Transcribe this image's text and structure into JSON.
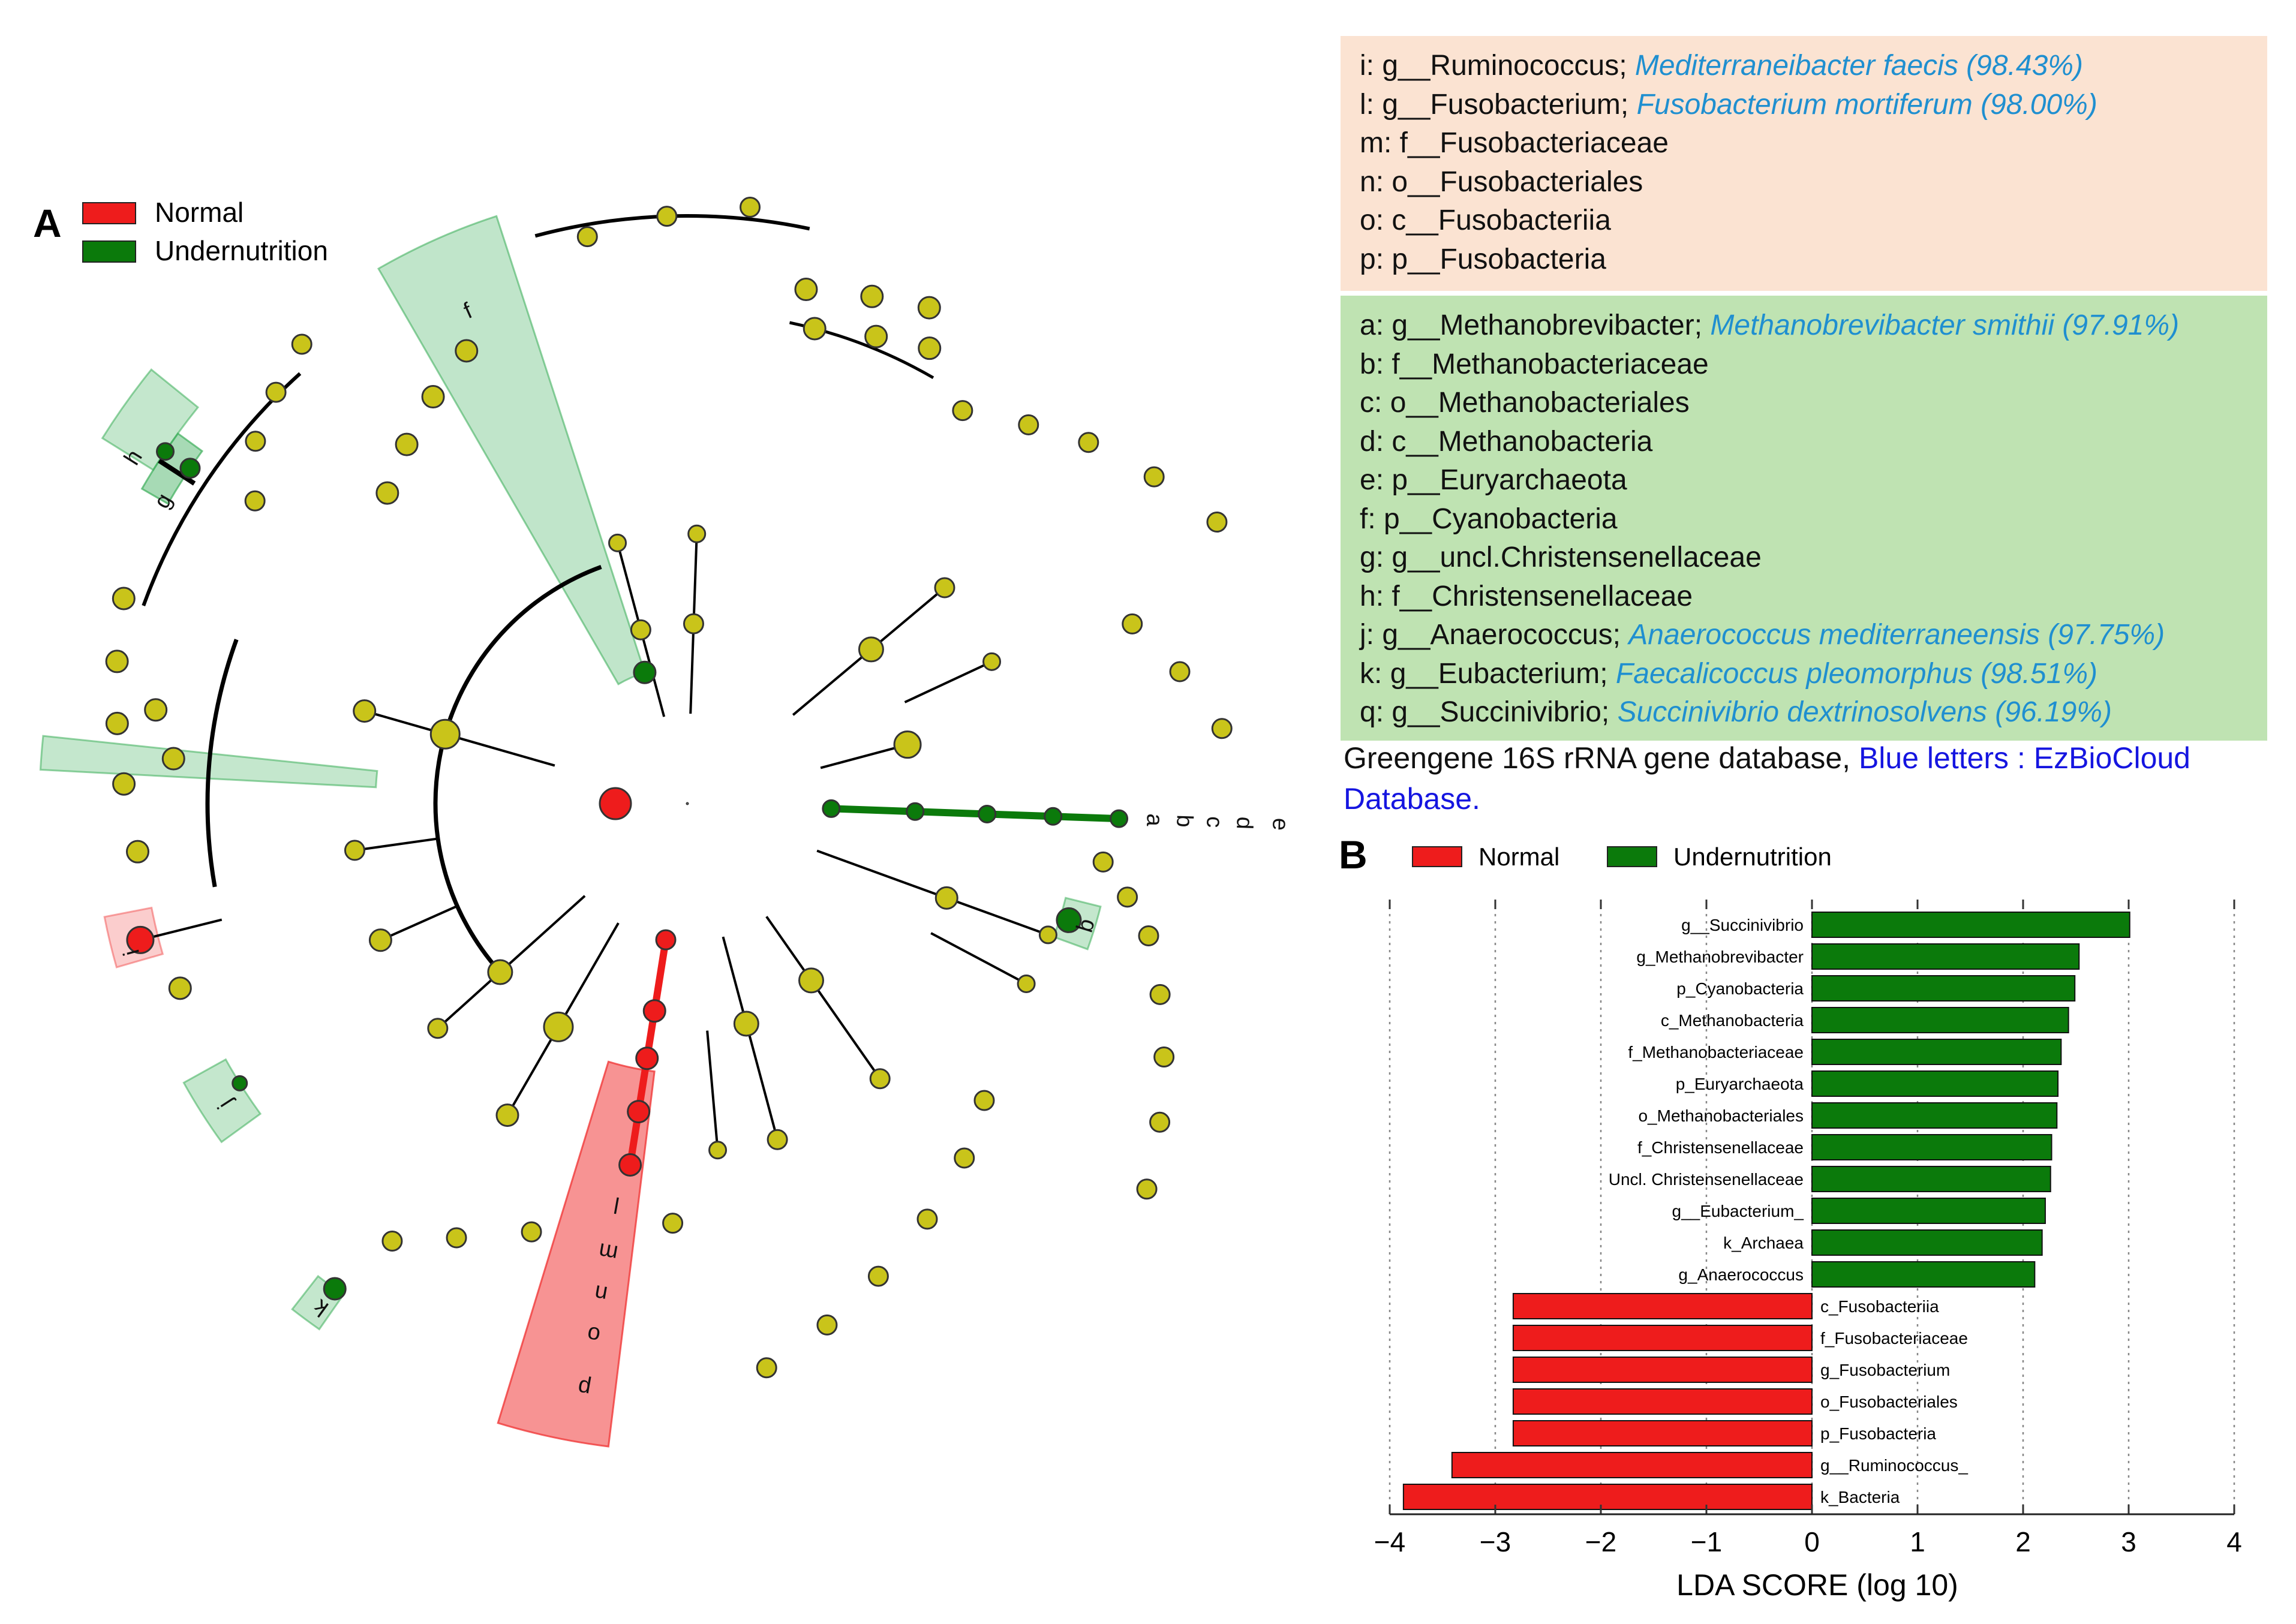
{
  "panel_a": {
    "panel_letter": "A",
    "legend": [
      {
        "label": "Normal",
        "color": "#ee1c1c"
      },
      {
        "label": "Undernutrition",
        "color": "#0b7a0b"
      }
    ],
    "clade_letters": [
      "a",
      "b",
      "c",
      "d",
      "e",
      "f",
      "g",
      "h",
      "i",
      "j",
      "k",
      "l",
      "m",
      "n",
      "o",
      "p",
      "q"
    ]
  },
  "labels_normal": [
    {
      "code": "i:",
      "taxon": "g__Ruminococcus;",
      "ez": "Mediterraneibacter faecis (98.43%)"
    },
    {
      "code": "l:",
      "taxon": "g__Fusobacterium;",
      "ez": "Fusobacterium mortiferum (98.00%)"
    },
    {
      "code": "m:",
      "taxon": "f__Fusobacteriaceae",
      "ez": ""
    },
    {
      "code": "n:",
      "taxon": "o__Fusobacteriales",
      "ez": ""
    },
    {
      "code": "o:",
      "taxon": "c__Fusobacteriia",
      "ez": ""
    },
    {
      "code": "p:",
      "taxon": "p__Fusobacteria",
      "ez": ""
    }
  ],
  "labels_undernutrition": [
    {
      "code": "a:",
      "taxon": "g__Methanobrevibacter;",
      "ez": "Methanobrevibacter smithii (97.91%)"
    },
    {
      "code": "b:",
      "taxon": "f__Methanobacteriaceae",
      "ez": ""
    },
    {
      "code": "c:",
      "taxon": "o__Methanobacteriales",
      "ez": ""
    },
    {
      "code": "d:",
      "taxon": "c__Methanobacteria",
      "ez": ""
    },
    {
      "code": "e:",
      "taxon": "p__Euryarchaeota",
      "ez": ""
    },
    {
      "code": "f:",
      "taxon": "p__Cyanobacteria",
      "ez": ""
    },
    {
      "code": "g:",
      "taxon": "g__uncl.Christensenellaceae",
      "ez": ""
    },
    {
      "code": "h:",
      "taxon": "f__Christensenellaceae",
      "ez": ""
    },
    {
      "code": "j:",
      "taxon": "g__Anaerococcus;",
      "ez": "Anaerococcus mediterraneensis (97.75%)"
    },
    {
      "code": "k:",
      "taxon": "g__Eubacterium;",
      "ez": "Faecalicoccus pleomorphus (98.51%)"
    },
    {
      "code": "q:",
      "taxon": "g__Succinivibrio;",
      "ez": "Succinivibrio dextrinosolvens (96.19%)"
    }
  ],
  "database_note": {
    "black": "Greengene 16S rRNA gene database, ",
    "blue": "Blue letters : EzBioCloud Database."
  },
  "chart_data": {
    "type": "bar",
    "panel_letter": "B",
    "orientation": "horizontal",
    "legend": [
      {
        "label": "Normal",
        "color": "#ee1c1c"
      },
      {
        "label": "Undernutrition",
        "color": "#0b7a0b"
      }
    ],
    "xlabel": "LDA SCORE (log 10)",
    "xlim": [
      -4,
      4
    ],
    "xticks": [
      "−4",
      "−3",
      "−2",
      "−1",
      "0",
      "1",
      "2",
      "3",
      "4"
    ],
    "grid": "vertical dotted",
    "series": [
      {
        "name": "Undernutrition",
        "color": "#0b7a0b",
        "categories": [
          "g__Succinivibrio",
          "g_Methanobrevibacter",
          "p_Cyanobacteria",
          "c_Methanobacteria",
          "f_Methanobacteriaceae",
          "p_Euryarchaeota",
          "o_Methanobacteriales",
          "f_Christensenellaceae",
          "Uncl. Christensenellaceae",
          "g__Eubacterium_",
          "k_Archaea",
          "g_Anaerococcus"
        ],
        "values": [
          3.01,
          2.53,
          2.49,
          2.43,
          2.36,
          2.33,
          2.32,
          2.27,
          2.26,
          2.21,
          2.18,
          2.11
        ]
      },
      {
        "name": "Normal",
        "color": "#ee1c1c",
        "categories": [
          "c_Fusobacteriia",
          "f_Fusobacteriaceae",
          "g_Fusobacterium",
          "o_Fusobacteriales",
          "p_Fusobacteria",
          "g__Ruminococcus_",
          "k_Bacteria"
        ],
        "values": [
          -2.83,
          -2.83,
          -2.83,
          -2.83,
          -2.83,
          -3.41,
          -3.87
        ]
      }
    ]
  }
}
